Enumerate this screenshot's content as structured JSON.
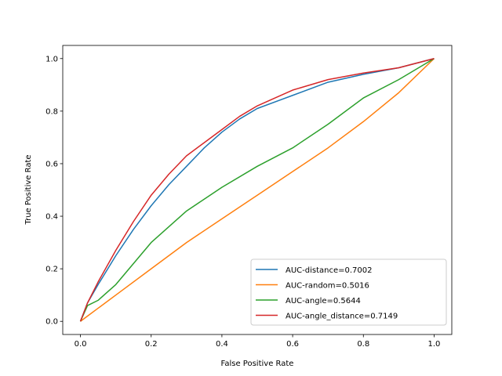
{
  "chart_data": {
    "type": "line",
    "title": "",
    "xlabel": "False Positive Rate",
    "ylabel": "True Positive Rate",
    "xlim": [
      -0.05,
      1.05
    ],
    "ylim": [
      -0.05,
      1.05
    ],
    "xticks": [
      "0.0",
      "0.2",
      "0.4",
      "0.6",
      "0.8",
      "1.0"
    ],
    "yticks": [
      "0.0",
      "0.2",
      "0.4",
      "0.6",
      "0.8",
      "1.0"
    ],
    "grid": false,
    "legend_position": "lower-right",
    "series": [
      {
        "name": "AUC-distance=0.7002",
        "color": "#1f77b4",
        "x": [
          0,
          0.02,
          0.05,
          0.1,
          0.15,
          0.2,
          0.25,
          0.3,
          0.35,
          0.4,
          0.45,
          0.5,
          0.6,
          0.7,
          0.8,
          0.9,
          1.0
        ],
        "y": [
          0,
          0.07,
          0.14,
          0.25,
          0.35,
          0.44,
          0.52,
          0.59,
          0.66,
          0.72,
          0.77,
          0.81,
          0.86,
          0.91,
          0.94,
          0.965,
          1.0
        ]
      },
      {
        "name": "AUC-random=0.5016",
        "color": "#ff7f0e",
        "x": [
          0,
          0.02,
          0.05,
          0.1,
          0.2,
          0.3,
          0.4,
          0.5,
          0.6,
          0.7,
          0.8,
          0.9,
          1.0
        ],
        "y": [
          0,
          0.02,
          0.05,
          0.1,
          0.2,
          0.3,
          0.39,
          0.48,
          0.57,
          0.66,
          0.76,
          0.87,
          1.0
        ]
      },
      {
        "name": "AUC-angle=0.5644",
        "color": "#2ca02c",
        "x": [
          0,
          0.02,
          0.05,
          0.1,
          0.2,
          0.3,
          0.4,
          0.5,
          0.6,
          0.7,
          0.8,
          0.9,
          1.0
        ],
        "y": [
          0,
          0.06,
          0.08,
          0.14,
          0.3,
          0.42,
          0.51,
          0.59,
          0.66,
          0.75,
          0.85,
          0.92,
          1.0
        ]
      },
      {
        "name": "AUC-angle_distance=0.7149",
        "color": "#d62728",
        "x": [
          0,
          0.02,
          0.05,
          0.1,
          0.15,
          0.2,
          0.25,
          0.3,
          0.35,
          0.4,
          0.45,
          0.5,
          0.6,
          0.7,
          0.8,
          0.9,
          1.0
        ],
        "y": [
          0,
          0.07,
          0.15,
          0.27,
          0.38,
          0.48,
          0.56,
          0.63,
          0.68,
          0.73,
          0.78,
          0.82,
          0.88,
          0.92,
          0.945,
          0.965,
          1.0
        ]
      }
    ]
  }
}
